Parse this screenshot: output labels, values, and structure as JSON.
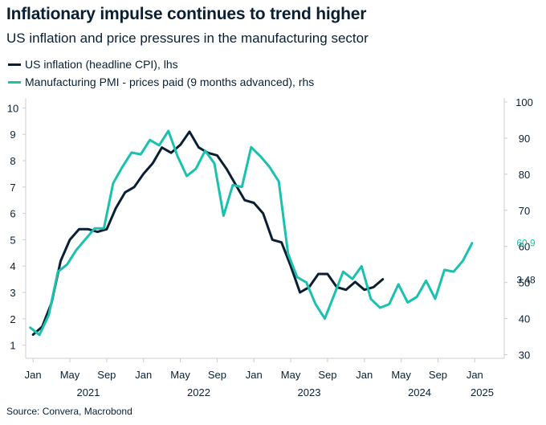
{
  "header": {
    "title": "Inflationary impulse continues to trend higher",
    "subtitle": "US inflation and price pressures in the manufacturing sector"
  },
  "legend": [
    {
      "label": "US inflation (headline CPI), lhs",
      "color": "#0a1f33"
    },
    {
      "label": "Manufacturing PMI - prices paid (9 months advanced), rhs",
      "color": "#19c2ae"
    }
  ],
  "source": "Source: Convera, Macrobond",
  "chart_data": {
    "type": "line",
    "title": "Inflationary impulse continues to trend higher",
    "subtitle": "US inflation and price pressures in the manufacturing sector",
    "x_range": [
      "2020-12",
      "2025-03"
    ],
    "x_ticks": [
      {
        "t": 0,
        "label": "Jan"
      },
      {
        "t": 4,
        "label": "May"
      },
      {
        "t": 8,
        "label": "Sep"
      },
      {
        "t": 12,
        "label": "Jan"
      },
      {
        "t": 16,
        "label": "May"
      },
      {
        "t": 20,
        "label": "Sep"
      },
      {
        "t": 24,
        "label": "Jan"
      },
      {
        "t": 28,
        "label": "May"
      },
      {
        "t": 32,
        "label": "Sep"
      },
      {
        "t": 36,
        "label": "Jan"
      },
      {
        "t": 40,
        "label": "May"
      },
      {
        "t": 44,
        "label": "Sep"
      },
      {
        "t": 48,
        "label": "Jan"
      }
    ],
    "year_labels": [
      {
        "t": 6,
        "label": "2021"
      },
      {
        "t": 18,
        "label": "2022"
      },
      {
        "t": 30,
        "label": "2023"
      },
      {
        "t": 42,
        "label": "2024"
      },
      {
        "t": 48.8,
        "label": "2025"
      }
    ],
    "y_left": {
      "min": 0.5,
      "max": 10.5,
      "ticks": [
        1,
        2,
        3,
        4,
        5,
        6,
        7,
        8,
        9,
        10
      ]
    },
    "y_right": {
      "min": 29,
      "max": 102,
      "ticks": [
        30,
        40,
        50,
        60,
        70,
        80,
        90,
        100
      ]
    },
    "right_tick_labels_shown": [
      "30",
      "40",
      "50",
      "60",
      "70",
      "80",
      "90",
      "100"
    ],
    "series": [
      {
        "name": "US inflation (headline CPI), lhs",
        "axis": "left",
        "color": "#0a1f33",
        "start_index": 0,
        "values": [
          1.4,
          1.7,
          2.6,
          4.2,
          5.0,
          5.4,
          5.4,
          5.3,
          5.4,
          6.2,
          6.8,
          7.0,
          7.5,
          7.9,
          8.5,
          8.3,
          8.6,
          9.1,
          8.5,
          8.3,
          8.2,
          7.7,
          7.1,
          6.5,
          6.4,
          6.0,
          5.0,
          4.9,
          4.0,
          3.0,
          3.2,
          3.7,
          3.7,
          3.2,
          3.1,
          3.4,
          3.1,
          3.2,
          3.5
        ],
        "end_label": "3.48"
      },
      {
        "name": "Manufacturing PMI - prices paid (9 months advanced), rhs",
        "axis": "right",
        "color": "#19c2ae",
        "start_index": -0.3,
        "values": [
          37.5,
          35.5,
          41.0,
          53.0,
          55.0,
          59.0,
          62.0,
          65.0,
          65.0,
          77.5,
          82.0,
          86.0,
          85.5,
          89.5,
          88.0,
          92.0,
          85.0,
          79.5,
          81.5,
          86.5,
          83.0,
          68.5,
          77.0,
          76.5,
          87.5,
          85.0,
          82.0,
          78.0,
          58.0,
          51.5,
          50.0,
          44.0,
          40.0,
          46.5,
          53.0,
          51.0,
          54.5,
          45.5,
          43.0,
          44.0,
          49.5,
          44.5,
          46.0,
          50.5,
          45.5,
          53.5,
          53.0,
          56.0,
          60.9
        ],
        "end_label": "60.9"
      }
    ]
  }
}
